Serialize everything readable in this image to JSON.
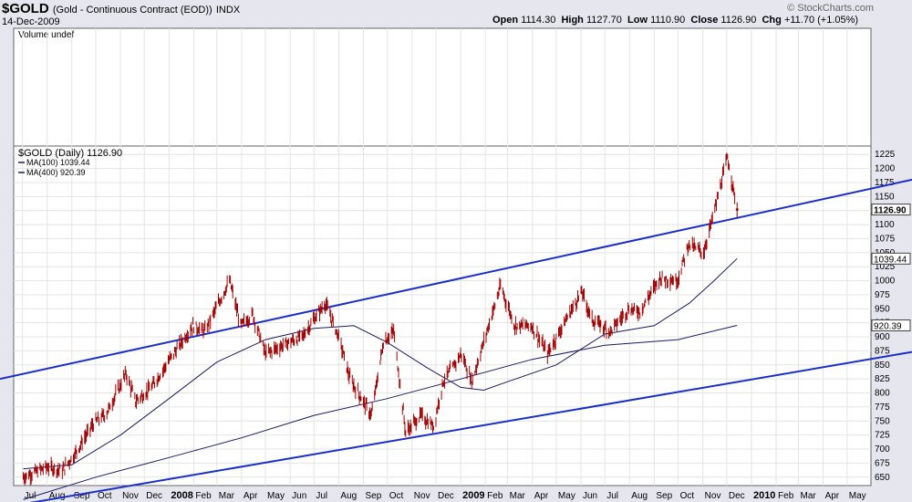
{
  "header": {
    "symbol": "$GOLD",
    "description": "(Gold - Continuous Contract (EOD))",
    "exchange": "INDX",
    "date": "14-Dec-2009",
    "open_label": "Open",
    "open": "1114.30",
    "high_label": "High",
    "high": "1127.70",
    "low_label": "Low",
    "low": "1110.90",
    "close_label": "Close",
    "close": "1126.90",
    "chg_label": "Chg",
    "chg": "+11.70 (+1.05%)",
    "logo": "© StockCharts.com"
  },
  "volume_panel": {
    "label": "Volume undef"
  },
  "legend": {
    "main": "$GOLD (Daily) 1126.90",
    "ma100": "MA(100) 1039.44",
    "ma400": "MA(400) 920.39"
  },
  "colors": {
    "price": "#a00000",
    "ma": "#1a1a66",
    "channel": "#1a2ecc",
    "bg": "#ffffff",
    "frame": "#e6e6ee"
  },
  "price_tags": {
    "close": "1126.90",
    "ma100": "1039.44",
    "ma400": "920.39"
  },
  "chart_data": {
    "type": "line",
    "title": "$GOLD (Daily) 1126.90",
    "xlabel": "",
    "ylabel": "",
    "ylim": [
      635,
      1240
    ],
    "y_ticks": [
      "650",
      "675",
      "700",
      "725",
      "750",
      "775",
      "800",
      "825",
      "850",
      "875",
      "900",
      "925",
      "950",
      "975",
      "1000",
      "1025",
      "1050",
      "1075",
      "1100",
      "1125",
      "1150",
      "1175",
      "1200",
      "1225"
    ],
    "x_ticks": [
      "Jul",
      "Aug",
      "Sep",
      "Oct",
      "Nov",
      "Dec",
      "2008",
      "Feb",
      "Mar",
      "Apr",
      "May",
      "Jun",
      "Jul",
      "Aug",
      "Sep",
      "Oct",
      "Nov",
      "Dec",
      "2009",
      "Feb",
      "Mar",
      "Apr",
      "May",
      "Jun",
      "Jul",
      "Aug",
      "Sep",
      "Oct",
      "Nov",
      "Dec",
      "2010",
      "Feb",
      "Mar",
      "Apr",
      "May"
    ],
    "x_date_ticks": [
      "2007-07-01",
      "2007-08-01",
      "2007-09-01",
      "2007-10-01",
      "2007-11-01",
      "2007-12-01",
      "2008-01-01",
      "2008-02-01",
      "2008-03-01",
      "2008-04-01",
      "2008-05-01",
      "2008-06-01",
      "2008-07-01",
      "2008-08-01",
      "2008-09-01",
      "2008-10-01",
      "2008-11-01",
      "2008-12-01",
      "2009-01-01",
      "2009-02-01",
      "2009-03-01",
      "2009-04-01",
      "2009-05-01",
      "2009-06-01",
      "2009-07-01",
      "2009-08-01",
      "2009-09-01",
      "2009-10-01",
      "2009-11-01",
      "2009-12-01",
      "2010-01-01",
      "2010-02-01",
      "2010-03-01",
      "2010-04-01",
      "2010-05-01"
    ],
    "series": [
      {
        "name": "$GOLD",
        "x": [
          "2007-07-02",
          "2007-08-01",
          "2007-08-20",
          "2007-09-04",
          "2007-09-28",
          "2007-10-15",
          "2007-11-08",
          "2007-11-20",
          "2007-12-10",
          "2008-01-02",
          "2008-01-31",
          "2008-02-15",
          "2008-03-17",
          "2008-03-31",
          "2008-04-15",
          "2008-05-01",
          "2008-05-30",
          "2008-06-16",
          "2008-07-15",
          "2008-08-01",
          "2008-08-15",
          "2008-09-11",
          "2008-09-26",
          "2008-10-09",
          "2008-10-24",
          "2008-11-12",
          "2008-11-28",
          "2008-12-10",
          "2009-01-02",
          "2009-01-15",
          "2009-02-20",
          "2009-03-10",
          "2009-03-31",
          "2009-04-20",
          "2009-05-15",
          "2009-06-02",
          "2009-06-15",
          "2009-07-08",
          "2009-07-31",
          "2009-08-14",
          "2009-09-08",
          "2009-09-30",
          "2009-10-14",
          "2009-11-02",
          "2009-11-20",
          "2009-12-02",
          "2009-12-14"
        ],
        "values": [
          650,
          668,
          662,
          690,
          745,
          765,
          835,
          785,
          810,
          860,
          920,
          910,
          1000,
          920,
          940,
          870,
          890,
          900,
          960,
          900,
          825,
          760,
          890,
          910,
          730,
          760,
          740,
          820,
          870,
          820,
          990,
          920,
          920,
          870,
          935,
          980,
          930,
          910,
          950,
          945,
          1005,
          1000,
          1065,
          1050,
          1150,
          1220,
          1126.9
        ]
      },
      {
        "name": "MA(100)",
        "x": [
          "2007-07-02",
          "2007-09-01",
          "2007-11-01",
          "2008-01-01",
          "2008-03-01",
          "2008-05-01",
          "2008-07-01",
          "2008-08-20",
          "2008-10-01",
          "2008-11-20",
          "2009-01-01",
          "2009-01-30",
          "2009-03-01",
          "2009-05-01",
          "2009-07-01",
          "2009-09-01",
          "2009-10-15",
          "2009-11-15",
          "2009-12-14"
        ],
        "values": [
          665,
          672,
          725,
          790,
          855,
          895,
          915,
          920,
          890,
          845,
          810,
          805,
          820,
          850,
          905,
          920,
          960,
          1000,
          1039.44
        ]
      },
      {
        "name": "MA(400)",
        "x": [
          "2007-07-02",
          "2007-10-01",
          "2008-01-01",
          "2008-04-01",
          "2008-07-01",
          "2008-10-01",
          "2009-01-01",
          "2009-04-01",
          "2009-07-01",
          "2009-10-01",
          "2009-12-14"
        ],
        "values": [
          610,
          650,
          685,
          720,
          760,
          790,
          825,
          860,
          885,
          895,
          920.39
        ]
      }
    ],
    "channel_lines": [
      {
        "x": [
          "2007-06-01",
          "2010-05-31"
        ],
        "values": [
          825,
          1180
        ]
      },
      {
        "x": [
          "2007-06-01",
          "2010-05-31"
        ],
        "values": [
          595,
          873
        ]
      }
    ],
    "grid": true,
    "legend_position": "top-left"
  }
}
